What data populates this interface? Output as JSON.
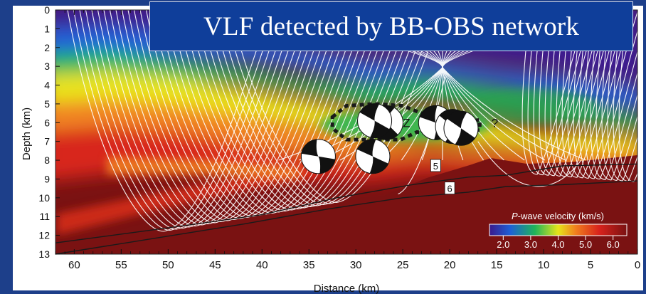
{
  "title": "VLF detected by BB-OBS network",
  "colors": {
    "background": "#1d3f8a",
    "title_box": "#0f3e9a",
    "ray_paths": "#ffffff",
    "contours": "#1a1a1a",
    "low_velocity": "#3a1a8c",
    "high_velocity": "#7a1212"
  },
  "chart_data": {
    "type": "heatmap",
    "description": "P-wave velocity cross-section",
    "xlabel": "Distance (km)",
    "ylabel": "Depth (km)",
    "xlim": [
      62,
      0
    ],
    "ylim": [
      0,
      13
    ],
    "x_ticks": [
      60,
      55,
      50,
      45,
      40,
      35,
      30,
      25,
      20,
      15,
      10,
      5,
      0
    ],
    "y_ticks": [
      0,
      1,
      2,
      3,
      4,
      5,
      6,
      7,
      8,
      9,
      10,
      11,
      12,
      13
    ],
    "colorbar": {
      "title_prefix": "P",
      "title_rest": "-wave velocity (km/s)",
      "ticks": [
        "2.0",
        "3.0",
        "4.0",
        "5.0",
        "6.0"
      ],
      "range": [
        1.5,
        6.5
      ],
      "colors": [
        "#3a1a8c",
        "#1e5fd6",
        "#1fb45a",
        "#e6e41a",
        "#f07d1e",
        "#d8221c",
        "#7a1212"
      ]
    },
    "contours": [
      {
        "label": "5",
        "points": [
          [
            62,
            12.4
          ],
          [
            50,
            11.6
          ],
          [
            40,
            10.9
          ],
          [
            32,
            10.0
          ],
          [
            24,
            9.3
          ],
          [
            18,
            8.9
          ],
          [
            14,
            8.8
          ],
          [
            8,
            8.3
          ],
          [
            0,
            8.2
          ]
        ],
        "label_x": 21.5,
        "label_y": 8.3
      },
      {
        "label": "6",
        "points": [
          [
            62,
            13.0
          ],
          [
            52,
            12.2
          ],
          [
            42,
            11.4
          ],
          [
            33,
            10.6
          ],
          [
            25,
            10.0
          ],
          [
            18,
            9.7
          ],
          [
            14,
            9.4
          ],
          [
            8,
            9.3
          ],
          [
            0,
            9.1
          ]
        ],
        "label_x": 20,
        "label_y": 9.5
      }
    ],
    "annotations": [
      {
        "text": "Z",
        "x": 24.6,
        "y": 6.0
      },
      {
        "text": "?",
        "x": 15.2,
        "y": 6.0
      }
    ],
    "events": [
      {
        "x": 26.8,
        "y": 6.0
      },
      {
        "x": 28.0,
        "y": 5.9
      },
      {
        "x": 21.5,
        "y": 6.0
      },
      {
        "x": 19.7,
        "y": 6.2
      },
      {
        "x": 18.8,
        "y": 6.3
      },
      {
        "x": 34.0,
        "y": 7.8
      },
      {
        "x": 28.2,
        "y": 7.8
      }
    ],
    "outline": [
      [
        32.5,
        5.7
      ],
      [
        31,
        5.1
      ],
      [
        28,
        5.0
      ],
      [
        25,
        5.1
      ],
      [
        23,
        5.5
      ],
      [
        21.5,
        5.6
      ],
      [
        20,
        5.6
      ],
      [
        18.5,
        5.8
      ],
      [
        17.5,
        5.9
      ],
      [
        16.8,
        5.85
      ],
      [
        16.8,
        6.4
      ],
      [
        18.4,
        6.4
      ],
      [
        20,
        6.8
      ],
      [
        22,
        6.6
      ],
      [
        23.5,
        6.5
      ],
      [
        25.2,
        6.9
      ],
      [
        28.5,
        6.9
      ],
      [
        31,
        6.9
      ],
      [
        32.5,
        6.3
      ]
    ]
  }
}
